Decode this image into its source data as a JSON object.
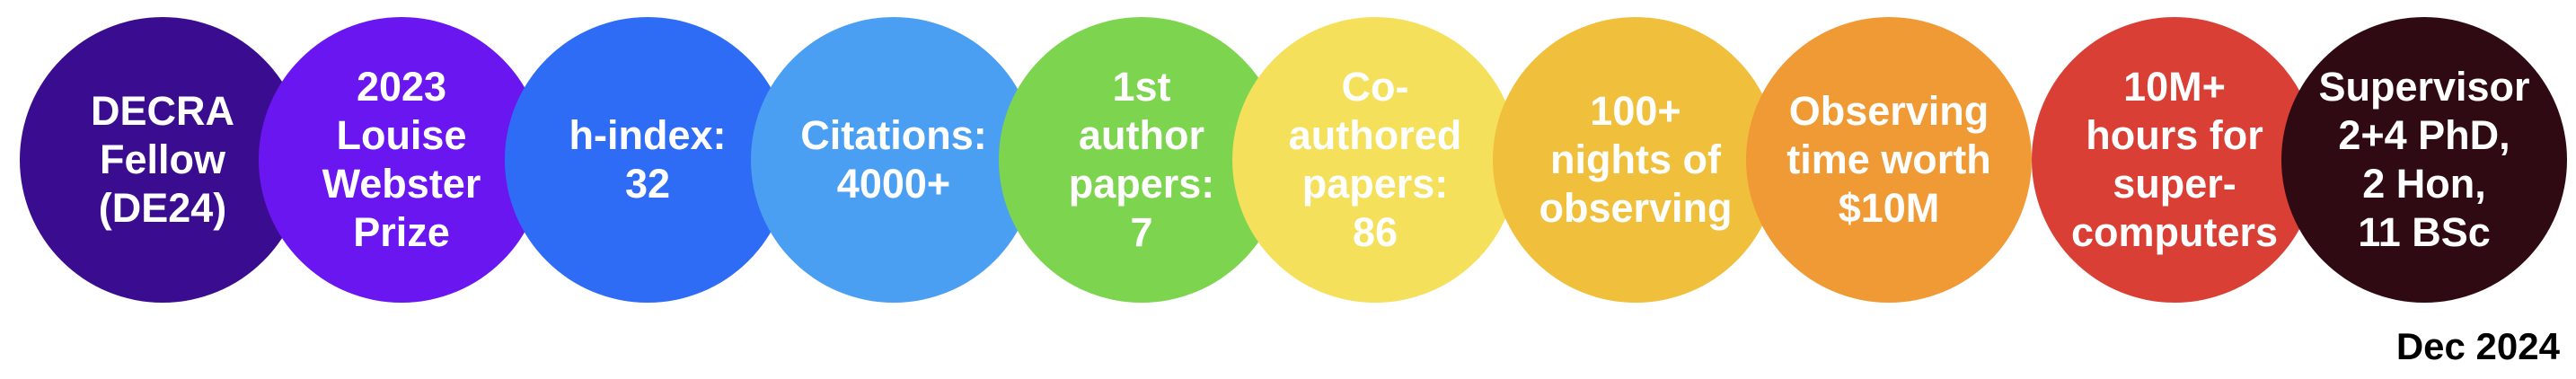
{
  "circles": [
    {
      "lines": [
        "DECRA",
        "Fellow",
        "(DE24)"
      ],
      "color": "#3a0c8f"
    },
    {
      "lines": [
        "2023",
        "Louise",
        "Webster",
        "Prize"
      ],
      "color": "#6a16f0"
    },
    {
      "lines": [
        "h-index:",
        "32"
      ],
      "color": "#2f6cf5"
    },
    {
      "lines": [
        "Citations:",
        "4000+"
      ],
      "color": "#4a9ff3"
    },
    {
      "lines": [
        "1st",
        "author",
        "papers:",
        "7"
      ],
      "color": "#7dd44f"
    },
    {
      "lines": [
        "Co-",
        "authored",
        "papers:",
        "86"
      ],
      "color": "#f4e05b"
    },
    {
      "lines": [
        "100+",
        "nights of",
        "observing"
      ],
      "color": "#f0c03c"
    },
    {
      "lines": [
        "Observing",
        "time worth",
        "$10M"
      ],
      "color": "#f09a36"
    },
    {
      "lines": [
        "10M+",
        "hours for",
        "super-",
        "computers"
      ],
      "color": "#da3f35"
    },
    {
      "lines": [
        "Supervisor",
        "2+4 PhD,",
        "2 Hon,",
        "11 BSc"
      ],
      "color": "#2f0a12"
    }
  ],
  "date": "Dec 2024"
}
